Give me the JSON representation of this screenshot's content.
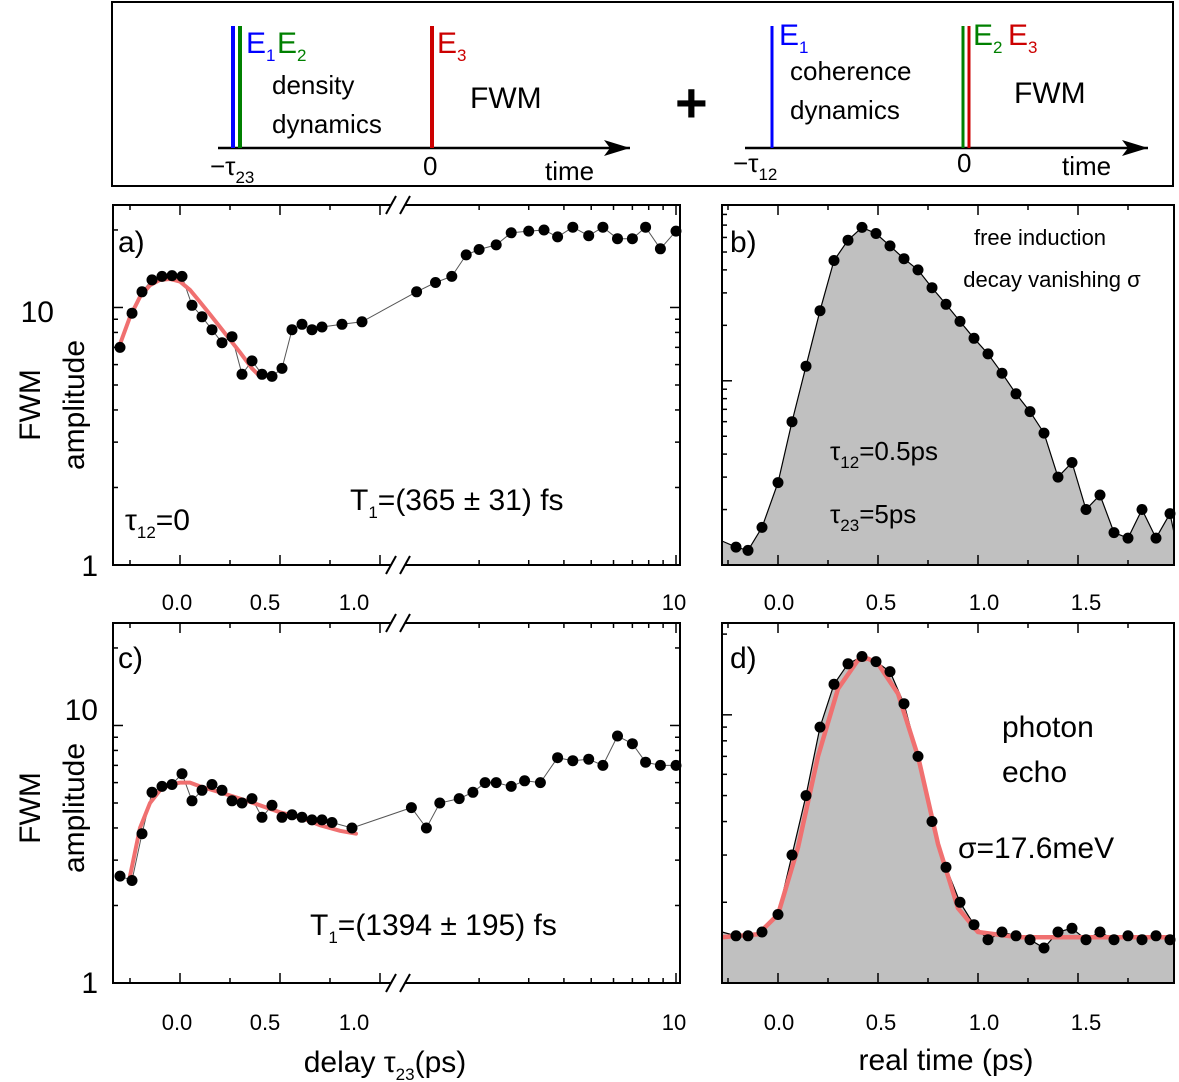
{
  "schematic": {
    "left": {
      "E1": "E",
      "E1_sub": "1",
      "E2": "E",
      "E2_sub": "2",
      "E3": "E",
      "E3_sub": "3",
      "text1": "density",
      "text2": "dynamics",
      "fwm": "FWM",
      "tau": "−τ",
      "tau_sub": "23",
      "zero": "0",
      "time": "time"
    },
    "plus": "+",
    "right": {
      "E1": "E",
      "E1_sub": "1",
      "E2": "E",
      "E2_sub": "2",
      "E3": "E",
      "E3_sub": "3",
      "text1": "coherence",
      "text2": "dynamics",
      "fwm": "FWM",
      "tau": "−τ",
      "tau_sub": "12",
      "zero": "0",
      "time": "time"
    },
    "colors": {
      "E1": "#0000ff",
      "E2": "#008000",
      "E3": "#cc0000"
    }
  },
  "chart_data": [
    {
      "panel": "a)",
      "type": "scatter",
      "x_scale": "broken: linear -0.3..1.05, log 1.1..10",
      "y_scale": "log",
      "ylim": [
        1,
        25
      ],
      "ylabel_line1": "FWM",
      "ylabel_line2": "amplitude",
      "yticks": [
        "1",
        "10"
      ],
      "xticks_linear": [
        "0.0",
        "0.5",
        "1.0"
      ],
      "xticks_log": [
        "10"
      ],
      "labels": {
        "t_base": "τ",
        "t_sub": "12",
        "t_rest": "=0",
        "T_base": "T",
        "T_sub": "1",
        "T_rest": "=(365 ± 31) fs"
      },
      "points": [
        [
          -0.3,
          7
        ],
        [
          -0.24,
          9.5
        ],
        [
          -0.19,
          11.5
        ],
        [
          -0.14,
          12.8
        ],
        [
          -0.09,
          13.2
        ],
        [
          -0.04,
          13.3
        ],
        [
          0.01,
          13.2
        ],
        [
          0.06,
          10.2
        ],
        [
          0.11,
          9.2
        ],
        [
          0.16,
          8.2
        ],
        [
          0.21,
          7.3
        ],
        [
          0.26,
          7.7
        ],
        [
          0.31,
          5.5
        ],
        [
          0.36,
          6.2
        ],
        [
          0.41,
          5.5
        ],
        [
          0.46,
          5.4
        ],
        [
          0.51,
          5.8
        ],
        [
          0.56,
          8.2
        ],
        [
          0.61,
          8.6
        ],
        [
          0.66,
          8.2
        ],
        [
          0.71,
          8.4
        ],
        [
          0.81,
          8.6
        ],
        [
          0.91,
          8.8
        ],
        [
          1.2,
          11.5
        ],
        [
          1.4,
          12.5
        ],
        [
          1.6,
          13.2
        ],
        [
          1.8,
          16
        ],
        [
          2.0,
          16.8
        ],
        [
          2.3,
          17.5
        ],
        [
          2.6,
          19.5
        ],
        [
          3.0,
          19.8
        ],
        [
          3.4,
          20
        ],
        [
          3.8,
          18.8
        ],
        [
          4.3,
          20.5
        ],
        [
          4.9,
          19
        ],
        [
          5.5,
          20.5
        ],
        [
          6.2,
          18.5
        ],
        [
          7.0,
          18.5
        ],
        [
          7.8,
          20.5
        ],
        [
          8.8,
          16.9
        ],
        [
          10.0,
          19.8
        ]
      ],
      "fit": [
        [
          -0.3,
          7.2
        ],
        [
          -0.25,
          9.2
        ],
        [
          -0.2,
          11
        ],
        [
          -0.15,
          12.2
        ],
        [
          -0.1,
          12.8
        ],
        [
          -0.05,
          12.9
        ],
        [
          0.0,
          12.6
        ],
        [
          0.05,
          11.7
        ],
        [
          0.1,
          10.5
        ],
        [
          0.15,
          9.4
        ],
        [
          0.2,
          8.4
        ],
        [
          0.25,
          7.5
        ],
        [
          0.3,
          6.7
        ],
        [
          0.36,
          5.8
        ],
        [
          0.4,
          5.4
        ]
      ]
    },
    {
      "panel": "b)",
      "type": "area",
      "y_scale": "log",
      "xlim": [
        -0.28,
        1.98
      ],
      "xticks": [
        "0.0",
        "0.5",
        "1.0",
        "1.5"
      ],
      "labels": {
        "l1": "free induction",
        "l2": "decay vanishing σ",
        "p1_base": "τ",
        "p1_sub": "12",
        "p1_rest": "=0.5ps",
        "p2_base": "τ",
        "p2_sub": "23",
        "p2_rest": "=5ps"
      },
      "points": [
        [
          -0.28,
          0.135
        ],
        [
          -0.21,
          0.125
        ],
        [
          -0.15,
          0.12
        ],
        [
          -0.08,
          0.16
        ],
        [
          0.0,
          0.28
        ],
        [
          0.07,
          0.6
        ],
        [
          0.14,
          1.2
        ],
        [
          0.21,
          2.4
        ],
        [
          0.28,
          4.5
        ],
        [
          0.35,
          5.8
        ],
        [
          0.42,
          6.8
        ],
        [
          0.49,
          6.3
        ],
        [
          0.56,
          5.4
        ],
        [
          0.63,
          4.6
        ],
        [
          0.7,
          4.0
        ],
        [
          0.77,
          3.2
        ],
        [
          0.84,
          2.6
        ],
        [
          0.91,
          2.1
        ],
        [
          0.98,
          1.7
        ],
        [
          1.05,
          1.4
        ],
        [
          1.12,
          1.1
        ],
        [
          1.19,
          0.85
        ],
        [
          1.26,
          0.68
        ],
        [
          1.33,
          0.52
        ],
        [
          1.4,
          0.3
        ],
        [
          1.47,
          0.36
        ],
        [
          1.54,
          0.2
        ],
        [
          1.61,
          0.24
        ],
        [
          1.68,
          0.15
        ],
        [
          1.75,
          0.14
        ],
        [
          1.82,
          0.2
        ],
        [
          1.89,
          0.14
        ],
        [
          1.96,
          0.19
        ],
        [
          1.98,
          0.15
        ]
      ]
    },
    {
      "panel": "c)",
      "type": "scatter",
      "x_scale": "broken: linear -0.3..1.05, log 1.1..10",
      "y_scale": "log",
      "ylim": [
        1,
        25
      ],
      "xlabel_base": "delay τ",
      "xlabel_sub": "23",
      "xlabel_rest": "(ps)",
      "ylabel_line1": "FWM",
      "ylabel_line2": "amplitude",
      "yticks": [
        "1",
        "10"
      ],
      "xticks_linear": [
        "0.0",
        "0.5",
        "1.0"
      ],
      "xticks_log": [
        "10"
      ],
      "labels": {
        "T_base": "T",
        "T_sub": "1",
        "T_rest": "=(1394 ± 195) fs"
      },
      "points": [
        [
          -0.3,
          2.6
        ],
        [
          -0.24,
          2.5
        ],
        [
          -0.19,
          3.8
        ],
        [
          -0.14,
          5.5
        ],
        [
          -0.09,
          5.8
        ],
        [
          -0.04,
          5.9
        ],
        [
          0.01,
          6.5
        ],
        [
          0.06,
          5.1
        ],
        [
          0.11,
          5.6
        ],
        [
          0.16,
          5.9
        ],
        [
          0.21,
          5.6
        ],
        [
          0.26,
          5.1
        ],
        [
          0.31,
          5.0
        ],
        [
          0.36,
          5.2
        ],
        [
          0.41,
          4.4
        ],
        [
          0.46,
          4.9
        ],
        [
          0.51,
          4.4
        ],
        [
          0.56,
          4.5
        ],
        [
          0.61,
          4.4
        ],
        [
          0.66,
          4.3
        ],
        [
          0.71,
          4.3
        ],
        [
          0.76,
          4.2
        ],
        [
          0.86,
          4.0
        ],
        [
          1.15,
          4.8
        ],
        [
          1.3,
          4.0
        ],
        [
          1.45,
          5.0
        ],
        [
          1.7,
          5.2
        ],
        [
          1.9,
          5.5
        ],
        [
          2.1,
          6.0
        ],
        [
          2.3,
          6.0
        ],
        [
          2.6,
          5.8
        ],
        [
          2.9,
          6.1
        ],
        [
          3.3,
          6.0
        ],
        [
          3.8,
          7.5
        ],
        [
          4.3,
          7.3
        ],
        [
          4.9,
          7.4
        ],
        [
          5.5,
          7.0
        ],
        [
          6.2,
          9.1
        ],
        [
          7.0,
          8.5
        ],
        [
          7.8,
          7.2
        ],
        [
          8.8,
          7.0
        ],
        [
          10.0,
          7.0
        ]
      ],
      "fit": [
        [
          -0.25,
          2.6
        ],
        [
          -0.2,
          4.0
        ],
        [
          -0.15,
          5.0
        ],
        [
          -0.1,
          5.6
        ],
        [
          -0.05,
          5.9
        ],
        [
          0.0,
          6.0
        ],
        [
          0.05,
          6.0
        ],
        [
          0.1,
          5.8
        ],
        [
          0.2,
          5.5
        ],
        [
          0.3,
          5.2
        ],
        [
          0.4,
          4.9
        ],
        [
          0.5,
          4.6
        ],
        [
          0.6,
          4.4
        ],
        [
          0.7,
          4.1
        ],
        [
          0.8,
          3.9
        ],
        [
          0.88,
          3.8
        ]
      ]
    },
    {
      "panel": "d)",
      "type": "area",
      "y_scale": "log",
      "xlim": [
        -0.28,
        1.98
      ],
      "xticks": [
        "0.0",
        "0.5",
        "1.0",
        "1.5"
      ],
      "xlabel": "real time (ps)",
      "labels": {
        "l1": "photon",
        "l2": "echo",
        "l3": "σ=17.6meV"
      },
      "points": [
        [
          -0.28,
          0.155
        ],
        [
          -0.21,
          0.15
        ],
        [
          -0.15,
          0.15
        ],
        [
          -0.08,
          0.155
        ],
        [
          0.0,
          0.18
        ],
        [
          0.07,
          0.3
        ],
        [
          0.14,
          0.5
        ],
        [
          0.21,
          0.9
        ],
        [
          0.28,
          1.3
        ],
        [
          0.35,
          1.55
        ],
        [
          0.42,
          1.65
        ],
        [
          0.49,
          1.58
        ],
        [
          0.56,
          1.45
        ],
        [
          0.63,
          1.1
        ],
        [
          0.7,
          0.7
        ],
        [
          0.77,
          0.4
        ],
        [
          0.84,
          0.27
        ],
        [
          0.91,
          0.2
        ],
        [
          0.98,
          0.165
        ],
        [
          1.05,
          0.145
        ],
        [
          1.12,
          0.155
        ],
        [
          1.19,
          0.15
        ],
        [
          1.26,
          0.145
        ],
        [
          1.33,
          0.135
        ],
        [
          1.4,
          0.155
        ],
        [
          1.47,
          0.16
        ],
        [
          1.54,
          0.145
        ],
        [
          1.61,
          0.155
        ],
        [
          1.68,
          0.145
        ],
        [
          1.75,
          0.15
        ],
        [
          1.82,
          0.145
        ],
        [
          1.89,
          0.15
        ],
        [
          1.96,
          0.145
        ],
        [
          1.98,
          0.15
        ]
      ],
      "fit": [
        [
          -0.28,
          0.148
        ],
        [
          -0.1,
          0.152
        ],
        [
          0.0,
          0.18
        ],
        [
          0.1,
          0.32
        ],
        [
          0.2,
          0.7
        ],
        [
          0.3,
          1.25
        ],
        [
          0.4,
          1.6
        ],
        [
          0.45,
          1.62
        ],
        [
          0.5,
          1.55
        ],
        [
          0.6,
          1.2
        ],
        [
          0.7,
          0.7
        ],
        [
          0.8,
          0.33
        ],
        [
          0.9,
          0.19
        ],
        [
          1.0,
          0.155
        ],
        [
          1.2,
          0.148
        ],
        [
          1.98,
          0.148
        ]
      ]
    }
  ]
}
